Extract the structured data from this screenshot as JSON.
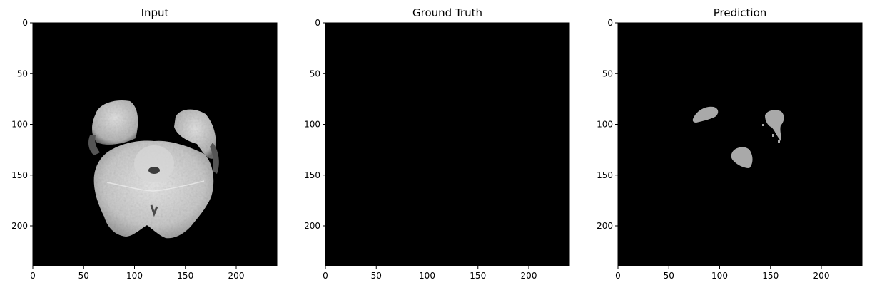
{
  "panels": [
    {
      "title": "Input",
      "kind": "mri-slice"
    },
    {
      "title": "Ground Truth",
      "kind": "empty-mask"
    },
    {
      "title": "Prediction",
      "kind": "segmentation-mask"
    }
  ],
  "axes": {
    "x_ticks": [
      "0",
      "50",
      "100",
      "150",
      "200"
    ],
    "y_ticks": [
      "0",
      "50",
      "100",
      "150",
      "200"
    ],
    "range": [
      0,
      240
    ]
  },
  "colors": {
    "background": "#000000",
    "mask": "#a9a9a9",
    "tissue_light": "#dcdcdc",
    "tissue_mid": "#b8b8b8",
    "ventricle": "#3c3c3c"
  }
}
